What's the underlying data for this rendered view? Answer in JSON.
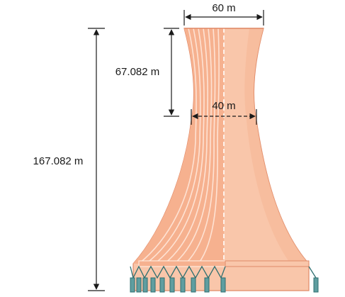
{
  "figure": {
    "subject": "Cooling tower (hyperboloid) dimensions",
    "labels": {
      "top_diameter": "60 m",
      "waist_diameter": "40 m",
      "top_to_waist_height": "67.082 m",
      "total_height": "167.082 m"
    },
    "colors": {
      "tower_front": "#f6b18f",
      "tower_back": "#f9c6aa",
      "tower_edge": "#e08a68",
      "stripe": "#ffe8db",
      "leg": "#5f9ea0",
      "leg_edge": "#2f6f70",
      "line": "#1a1a1a"
    }
  }
}
